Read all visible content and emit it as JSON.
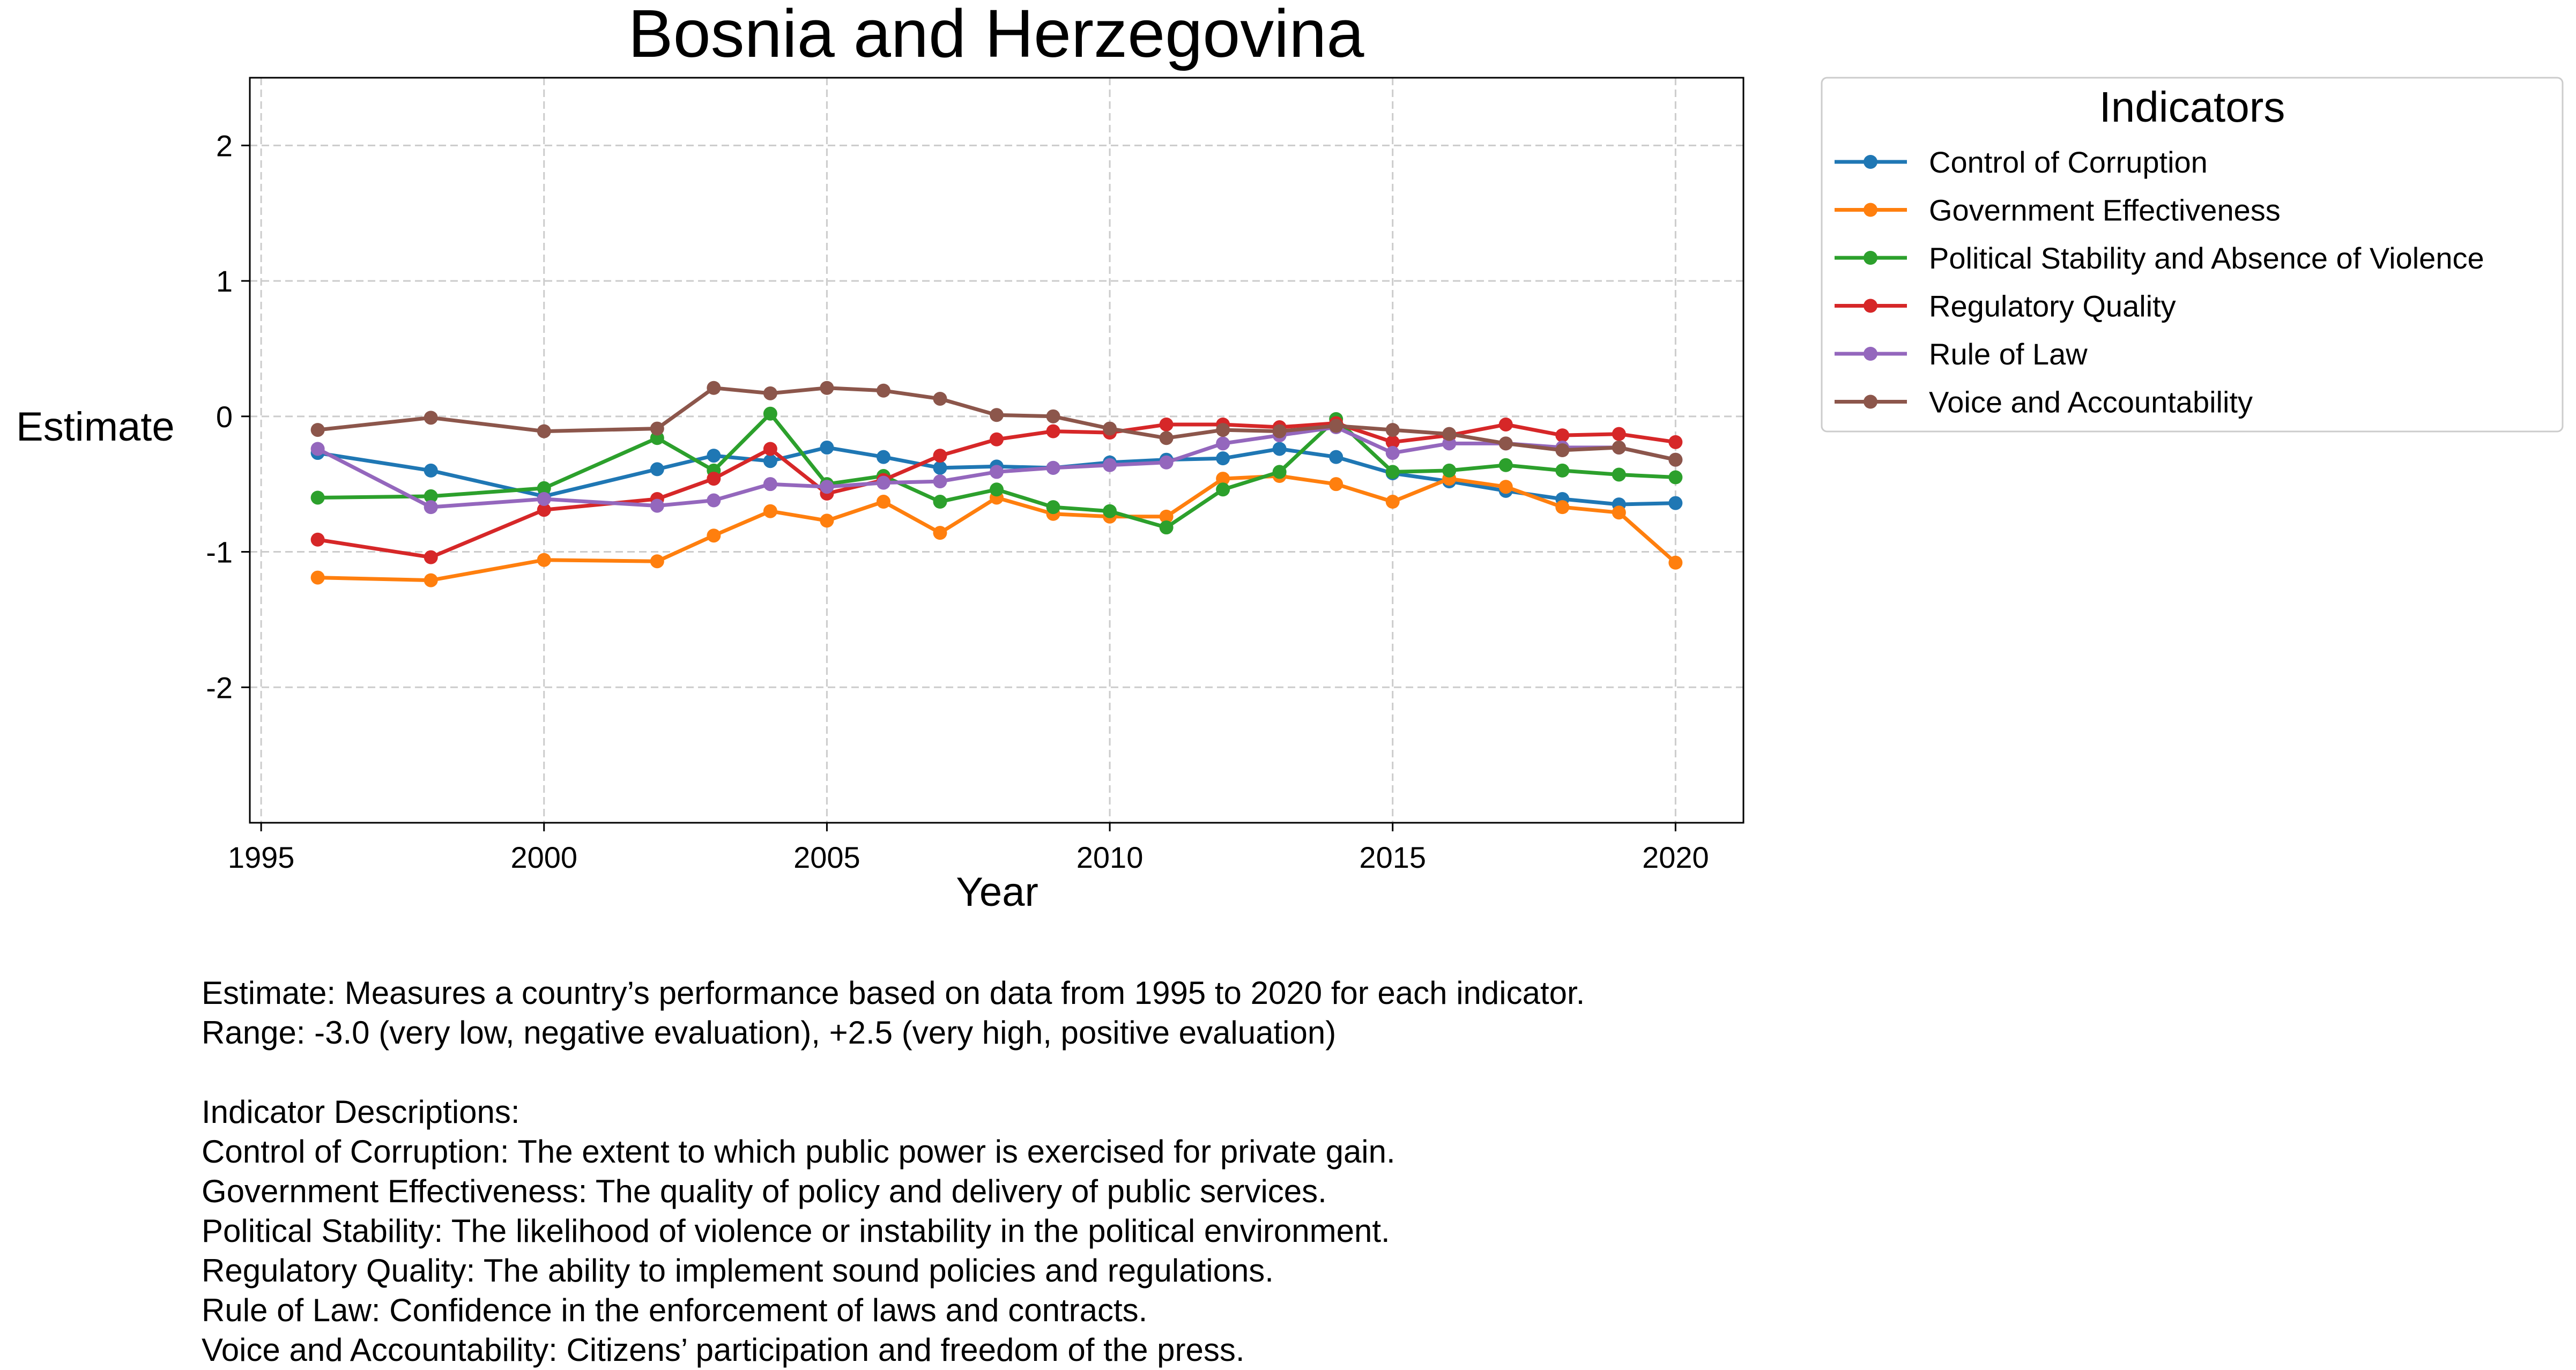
{
  "chart_data": {
    "type": "line",
    "title": "Bosnia and Herzegovina",
    "xlabel": "Year",
    "ylabel": "Estimate",
    "xlim": [
      1994.8,
      2021.2
    ],
    "ylim": [
      -3.0,
      2.5
    ],
    "xticks": [
      1995,
      2000,
      2005,
      2010,
      2015,
      2020
    ],
    "yticks": [
      -2,
      -1,
      0,
      1,
      2
    ],
    "grid": true,
    "legend": {
      "title": "Indicators",
      "placement": "outside-top-right"
    },
    "x": [
      1996,
      1998,
      2000,
      2002,
      2003,
      2004,
      2005,
      2006,
      2007,
      2008,
      2009,
      2010,
      2011,
      2012,
      2013,
      2014,
      2015,
      2016,
      2017,
      2018,
      2019,
      2020
    ],
    "series": [
      {
        "name": "Control of Corruption",
        "color": "#1f77b4",
        "values": [
          -0.27,
          -0.4,
          -0.59,
          -0.39,
          -0.29,
          -0.33,
          -0.23,
          -0.3,
          -0.38,
          -0.37,
          -0.38,
          -0.34,
          -0.32,
          -0.31,
          -0.24,
          -0.3,
          -0.42,
          -0.48,
          -0.55,
          -0.61,
          -0.65,
          -0.64
        ]
      },
      {
        "name": "Government Effectiveness",
        "color": "#ff7f0e",
        "values": [
          -1.19,
          -1.21,
          -1.06,
          -1.07,
          -0.88,
          -0.7,
          -0.77,
          -0.63,
          -0.86,
          -0.6,
          -0.72,
          -0.74,
          -0.74,
          -0.46,
          -0.44,
          -0.5,
          -0.63,
          -0.46,
          -0.52,
          -0.67,
          -0.71,
          -1.08
        ]
      },
      {
        "name": "Political Stability and Absence of Violence",
        "color": "#2ca02c",
        "values": [
          -0.6,
          -0.59,
          -0.53,
          -0.16,
          -0.4,
          0.02,
          -0.5,
          -0.44,
          -0.63,
          -0.54,
          -0.67,
          -0.7,
          -0.82,
          -0.54,
          -0.41,
          -0.02,
          -0.41,
          -0.4,
          -0.36,
          -0.4,
          -0.43,
          -0.45
        ]
      },
      {
        "name": "Regulatory Quality",
        "color": "#d62728",
        "values": [
          -0.91,
          -1.04,
          -0.69,
          -0.61,
          -0.46,
          -0.24,
          -0.57,
          -0.47,
          -0.29,
          -0.17,
          -0.11,
          -0.12,
          -0.06,
          -0.06,
          -0.08,
          -0.05,
          -0.19,
          -0.14,
          -0.06,
          -0.14,
          -0.13,
          -0.19
        ]
      },
      {
        "name": "Rule of Law",
        "color": "#9467bd",
        "values": [
          -0.24,
          -0.67,
          -0.61,
          -0.66,
          -0.62,
          -0.5,
          -0.52,
          -0.49,
          -0.48,
          -0.41,
          -0.38,
          -0.36,
          -0.34,
          -0.2,
          -0.14,
          -0.08,
          -0.27,
          -0.2,
          -0.2,
          -0.23,
          -0.23,
          -0.32
        ]
      },
      {
        "name": "Voice and Accountability",
        "color": "#8c564b",
        "values": [
          -0.1,
          -0.01,
          -0.11,
          -0.09,
          0.21,
          0.17,
          0.21,
          0.19,
          0.13,
          0.01,
          0.0,
          -0.09,
          -0.16,
          -0.1,
          -0.11,
          -0.07,
          -0.1,
          -0.13,
          -0.2,
          -0.25,
          -0.23,
          -0.32
        ]
      }
    ]
  },
  "notes": {
    "estimate_line": "Estimate: Measures a country’s performance based on data from 1995 to 2020 for each indicator.",
    "range_line": "Range: -3.0 (very low, negative evaluation), +2.5 (very high, positive evaluation)",
    "descriptions_title": "Indicator Descriptions:",
    "descriptions": [
      "Control of Corruption: The extent to which public power is exercised for private gain.",
      "Government Effectiveness: The quality of policy and delivery of public services.",
      "Political Stability: The likelihood of violence or instability in the political environment.",
      "Regulatory Quality: The ability to implement sound policies and regulations.",
      "Rule of Law: Confidence in the enforcement of laws and contracts.",
      "Voice and Accountability: Citizens’ participation and freedom of the press."
    ]
  }
}
